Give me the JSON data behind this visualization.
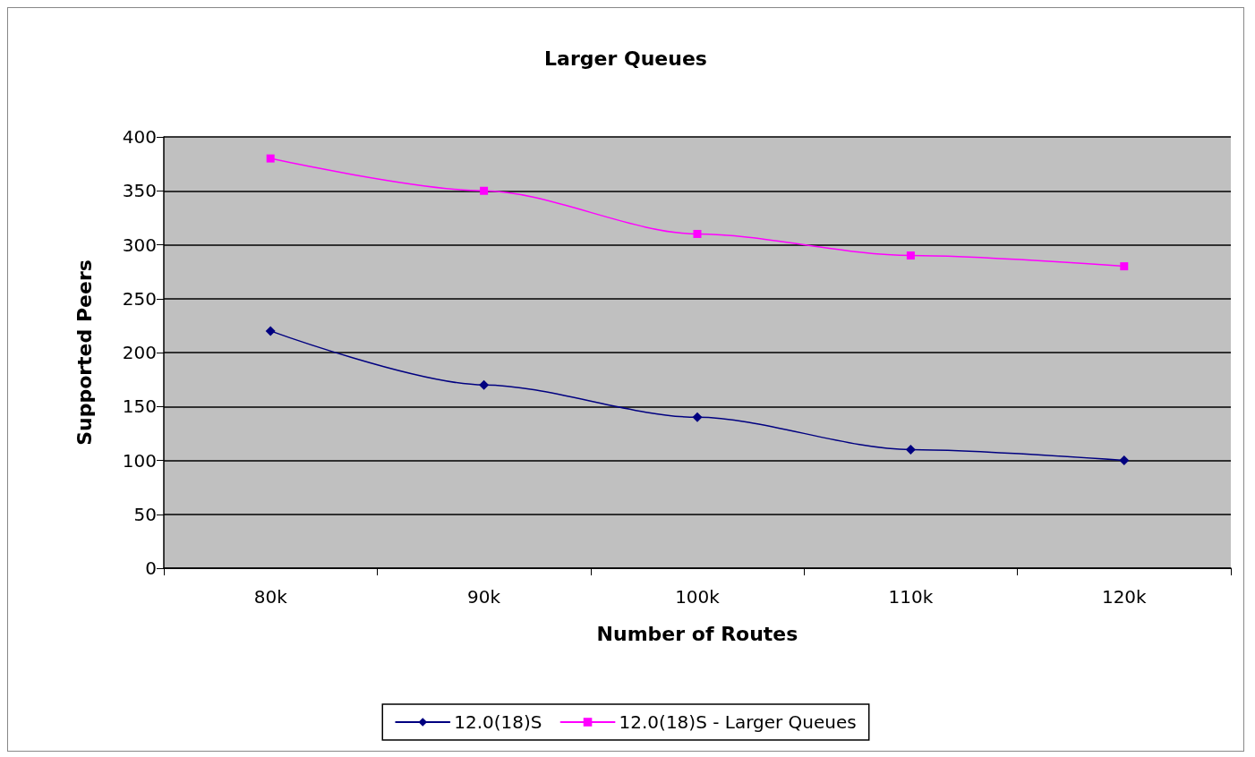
{
  "chart_data": {
    "type": "line",
    "title": "Larger Queues",
    "xlabel": "Number of Routes",
    "ylabel": "Supported Peers",
    "categories": [
      "80k",
      "90k",
      "100k",
      "110k",
      "120k"
    ],
    "series": [
      {
        "name": "12.0(18)S",
        "color": "#000080",
        "values": [
          220,
          170,
          140,
          110,
          100
        ],
        "marker": "diamond"
      },
      {
        "name": "12.0(18)S - Larger Queues",
        "color": "#ff00ff",
        "values": [
          380,
          350,
          310,
          290,
          280
        ],
        "marker": "square"
      }
    ],
    "ylim": [
      0,
      400
    ],
    "yticks": [
      0,
      50,
      100,
      150,
      200,
      250,
      300,
      350,
      400
    ],
    "grid": "y",
    "legend": "bottom"
  }
}
